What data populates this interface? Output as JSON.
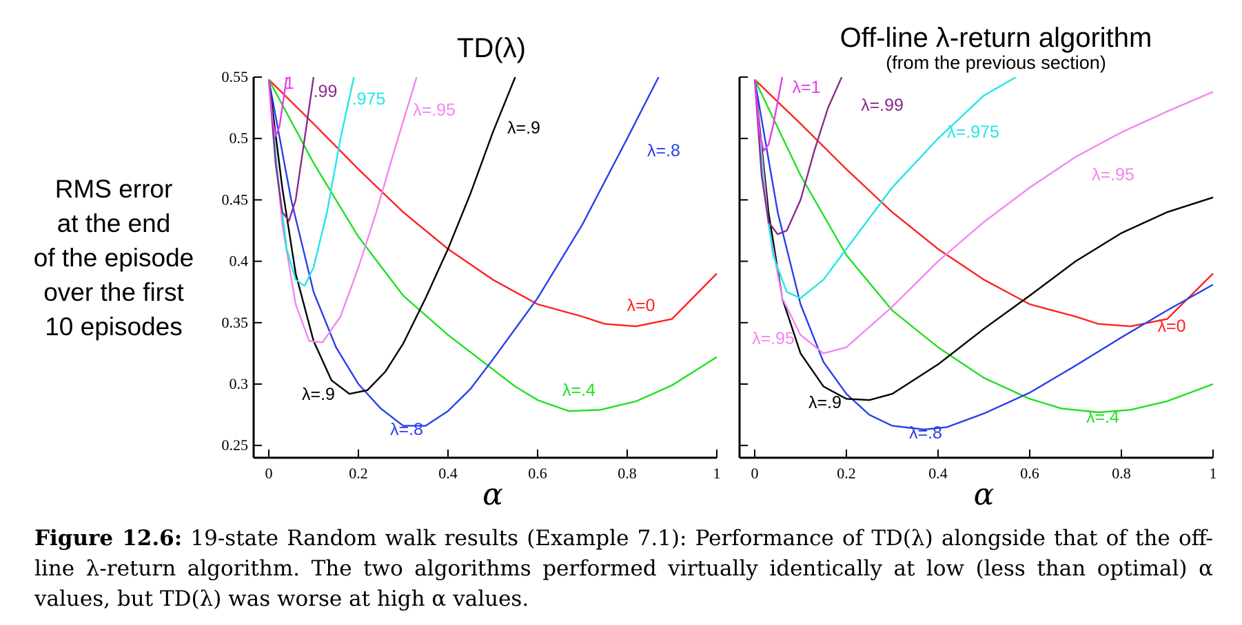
{
  "figure": {
    "ylabel_lines": [
      "RMS error",
      "at the end",
      "of the episode",
      "over the first",
      "10 episodes"
    ],
    "caption_label": "Figure 12.6:",
    "caption_text": " 19-state Random walk results (Example 7.1): Performance of TD(λ) alongside that of the off-line λ-return algorithm. The two algorithms performed virtually identically at low (less than optimal) α values, but TD(λ) was worse at high α values."
  },
  "chart_data": [
    {
      "type": "line",
      "title": "TD(λ)",
      "subtitle": "",
      "xlabel": "α",
      "ylabel": "RMS error at the end of the episode over the first 10 episodes",
      "xlim": [
        0,
        1
      ],
      "ylim": [
        0.24,
        0.55
      ],
      "xticks": [
        0,
        0.2,
        0.4,
        0.6,
        0.8,
        1
      ],
      "xtick_labels": [
        "0",
        "0.2",
        "0.4",
        "0.6",
        "0.8",
        "1"
      ],
      "yticks": [
        0.25,
        0.3,
        0.35,
        0.4,
        0.45,
        0.5,
        0.55
      ],
      "ytick_labels": [
        "0.25",
        "0.3",
        "0.35",
        "0.4",
        "0.45",
        "0.5",
        "0.55"
      ],
      "grid": false,
      "series": [
        {
          "name": "λ=0",
          "label": "λ=0",
          "color": "#ff2020",
          "x": [
            0,
            0.1,
            0.2,
            0.3,
            0.4,
            0.5,
            0.6,
            0.7,
            0.75,
            0.82,
            0.9,
            1.0
          ],
          "y": [
            0.548,
            0.512,
            0.475,
            0.44,
            0.41,
            0.385,
            0.365,
            0.355,
            0.349,
            0.347,
            0.353,
            0.39
          ]
        },
        {
          "name": "λ=.4",
          "label": "λ=.4",
          "color": "#1fe01f",
          "x": [
            0,
            0.1,
            0.2,
            0.3,
            0.4,
            0.5,
            0.55,
            0.6,
            0.67,
            0.74,
            0.82,
            0.9,
            1.0
          ],
          "y": [
            0.548,
            0.48,
            0.42,
            0.372,
            0.34,
            0.312,
            0.298,
            0.287,
            0.278,
            0.279,
            0.286,
            0.299,
            0.322
          ]
        },
        {
          "name": "λ=.8",
          "label": "λ=.8",
          "color": "#2a3fe8",
          "x": [
            0,
            0.05,
            0.1,
            0.15,
            0.2,
            0.25,
            0.3,
            0.35,
            0.4,
            0.45,
            0.5,
            0.6,
            0.7,
            0.8,
            0.87
          ],
          "y": [
            0.548,
            0.45,
            0.375,
            0.33,
            0.3,
            0.28,
            0.266,
            0.266,
            0.278,
            0.296,
            0.32,
            0.37,
            0.43,
            0.5,
            0.55
          ]
        },
        {
          "name": "λ=.9",
          "label": "λ=.9",
          "color": "#000000",
          "x": [
            0,
            0.03,
            0.06,
            0.1,
            0.14,
            0.18,
            0.22,
            0.26,
            0.3,
            0.35,
            0.4,
            0.45,
            0.5,
            0.55
          ],
          "y": [
            0.548,
            0.46,
            0.39,
            0.335,
            0.303,
            0.292,
            0.295,
            0.31,
            0.333,
            0.37,
            0.41,
            0.455,
            0.505,
            0.55
          ]
        },
        {
          "name": "λ=.95",
          "label": "λ=.95",
          "color": "#f286ee",
          "x": [
            0,
            0.03,
            0.06,
            0.09,
            0.12,
            0.16,
            0.2,
            0.24,
            0.28,
            0.33
          ],
          "y": [
            0.548,
            0.43,
            0.365,
            0.335,
            0.334,
            0.355,
            0.395,
            0.44,
            0.49,
            0.55
          ]
        },
        {
          "name": "λ=.975",
          "label": ".975",
          "color": "#22e6e6",
          "x": [
            0,
            0.02,
            0.04,
            0.06,
            0.08,
            0.1,
            0.13,
            0.16,
            0.19
          ],
          "y": [
            0.548,
            0.47,
            0.41,
            0.385,
            0.38,
            0.395,
            0.44,
            0.5,
            0.55
          ]
        },
        {
          "name": "λ=.99",
          "label": ".99",
          "color": "#8a2b8c",
          "x": [
            0,
            0.015,
            0.03,
            0.045,
            0.06,
            0.08,
            0.1
          ],
          "y": [
            0.548,
            0.48,
            0.44,
            0.433,
            0.45,
            0.5,
            0.55
          ]
        },
        {
          "name": "λ=1",
          "label": "1",
          "color": "#e33fe3",
          "x": [
            0,
            0.008,
            0.016,
            0.024,
            0.032,
            0.04
          ],
          "y": [
            0.548,
            0.515,
            0.502,
            0.51,
            0.53,
            0.55
          ]
        }
      ]
    },
    {
      "type": "line",
      "title": "Off-line λ-return algorithm",
      "subtitle": "(from the previous section)",
      "xlabel": "α",
      "ylabel": "",
      "xlim": [
        0,
        1
      ],
      "ylim": [
        0.24,
        0.55
      ],
      "xticks": [
        0,
        0.2,
        0.4,
        0.6,
        0.8,
        1
      ],
      "xtick_labels": [
        "0",
        "0.2",
        "0.4",
        "0.6",
        "0.8",
        "1"
      ],
      "yticks": [
        0.25,
        0.3,
        0.35,
        0.4,
        0.45,
        0.5,
        0.55
      ],
      "ytick_labels": [],
      "grid": false,
      "series": [
        {
          "name": "λ=0",
          "label": "λ=0",
          "color": "#ff2020",
          "x": [
            0,
            0.1,
            0.2,
            0.3,
            0.4,
            0.5,
            0.6,
            0.7,
            0.75,
            0.82,
            0.9,
            1.0
          ],
          "y": [
            0.548,
            0.512,
            0.475,
            0.44,
            0.41,
            0.385,
            0.365,
            0.355,
            0.349,
            0.347,
            0.353,
            0.39
          ]
        },
        {
          "name": "λ=.4",
          "label": "λ=.4",
          "color": "#1fe01f",
          "x": [
            0,
            0.1,
            0.2,
            0.3,
            0.4,
            0.5,
            0.6,
            0.67,
            0.75,
            0.82,
            0.9,
            1.0
          ],
          "y": [
            0.548,
            0.47,
            0.405,
            0.36,
            0.33,
            0.305,
            0.288,
            0.28,
            0.277,
            0.279,
            0.286,
            0.3
          ]
        },
        {
          "name": "λ=.8",
          "label": "λ=.8",
          "color": "#2a3fe8",
          "x": [
            0,
            0.05,
            0.1,
            0.15,
            0.2,
            0.25,
            0.3,
            0.37,
            0.42,
            0.5,
            0.6,
            0.7,
            0.8,
            0.9,
            1.0
          ],
          "y": [
            0.548,
            0.44,
            0.365,
            0.318,
            0.292,
            0.275,
            0.266,
            0.263,
            0.265,
            0.276,
            0.293,
            0.315,
            0.338,
            0.36,
            0.381
          ]
        },
        {
          "name": "λ=.9",
          "label": "λ=.9",
          "color": "#000000",
          "x": [
            0,
            0.03,
            0.06,
            0.1,
            0.15,
            0.2,
            0.25,
            0.3,
            0.4,
            0.5,
            0.6,
            0.7,
            0.8,
            0.9,
            1.0
          ],
          "y": [
            0.548,
            0.44,
            0.37,
            0.325,
            0.298,
            0.288,
            0.287,
            0.292,
            0.316,
            0.345,
            0.372,
            0.4,
            0.423,
            0.44,
            0.452
          ]
        },
        {
          "name": "λ=.95",
          "label": "λ=.95",
          "color": "#f286ee",
          "x": [
            0,
            0.03,
            0.06,
            0.1,
            0.15,
            0.2,
            0.3,
            0.4,
            0.5,
            0.6,
            0.7,
            0.8,
            0.9,
            1.0
          ],
          "y": [
            0.548,
            0.43,
            0.37,
            0.34,
            0.325,
            0.33,
            0.363,
            0.4,
            0.432,
            0.46,
            0.485,
            0.505,
            0.522,
            0.538
          ]
        },
        {
          "name": "λ=.975",
          "label": "λ=.975",
          "color": "#22e6e6",
          "x": [
            0,
            0.02,
            0.04,
            0.07,
            0.1,
            0.15,
            0.2,
            0.3,
            0.4,
            0.5,
            0.57
          ],
          "y": [
            0.548,
            0.46,
            0.405,
            0.375,
            0.37,
            0.385,
            0.41,
            0.46,
            0.5,
            0.535,
            0.55
          ]
        },
        {
          "name": "λ=.99",
          "label": "λ=.99",
          "color": "#8a2b8c",
          "x": [
            0,
            0.015,
            0.03,
            0.05,
            0.07,
            0.1,
            0.13,
            0.16,
            0.19
          ],
          "y": [
            0.548,
            0.47,
            0.432,
            0.422,
            0.425,
            0.45,
            0.49,
            0.525,
            0.55
          ]
        },
        {
          "name": "λ=1",
          "label": "λ=1",
          "color": "#e33fe3",
          "x": [
            0,
            0.01,
            0.02,
            0.03,
            0.04,
            0.05,
            0.06
          ],
          "y": [
            0.548,
            0.505,
            0.49,
            0.495,
            0.51,
            0.53,
            0.55
          ]
        }
      ]
    }
  ]
}
